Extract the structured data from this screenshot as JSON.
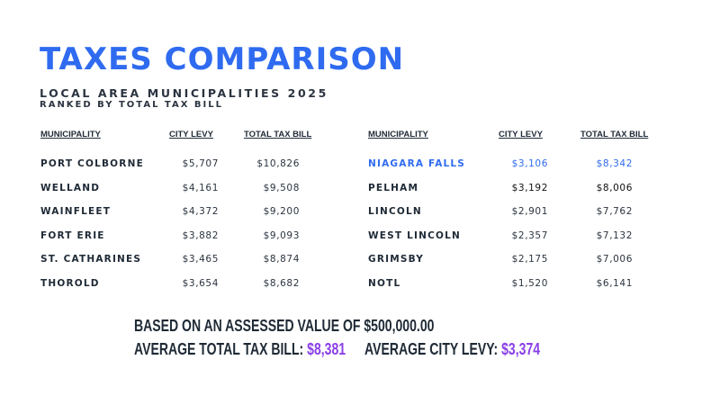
{
  "title": "TAXES COMPARISON",
  "subtitle_line1": "LOCAL AREA MUNICIPALITIES 2025",
  "subtitle_line2": "RANKED BY TOTAL TAX BILL",
  "columns": {
    "municipality": "MUNICIPALITY",
    "city_levy": "CITY LEVY",
    "total_tax_bill": "TOTAL TAX  BILL"
  },
  "left_table": [
    {
      "municipality": "PORT COLBORNE",
      "city_levy": "$5,707",
      "total_tax_bill": "$10,826"
    },
    {
      "municipality": "WELLAND",
      "city_levy": "$4,161",
      "total_tax_bill": "$9,508"
    },
    {
      "municipality": "WAINFLEET",
      "city_levy": "$4,372",
      "total_tax_bill": "$9,200"
    },
    {
      "municipality": "FORT ERIE",
      "city_levy": "$3,882",
      "total_tax_bill": "$9,093"
    },
    {
      "municipality": "ST. CATHARINES",
      "city_levy": "$3,465",
      "total_tax_bill": "$8,874"
    },
    {
      "municipality": "THOROLD",
      "city_levy": "$3,654",
      "total_tax_bill": "$8,682"
    }
  ],
  "right_table": [
    {
      "municipality": "NIAGARA FALLS",
      "city_levy": "$3,106",
      "total_tax_bill": "$8,342",
      "highlighted": true
    },
    {
      "municipality": "PELHAM",
      "city_levy": "$3,192",
      "total_tax_bill": "$8,006"
    },
    {
      "municipality": "LINCOLN",
      "city_levy": "$2,901",
      "total_tax_bill": "$7,762"
    },
    {
      "municipality": "WEST LINCOLN",
      "city_levy": "$2,357",
      "total_tax_bill": "$7,132"
    },
    {
      "municipality": "GRIMSBY",
      "city_levy": "$2,175",
      "total_tax_bill": "$7,006"
    },
    {
      "municipality": "NOTL",
      "city_levy": "$1,520",
      "total_tax_bill": "$6,141"
    }
  ],
  "footer": {
    "assessed_note": "BASED ON AN ASSESSED VALUE OF $500,000.00",
    "avg_total_label": "AVERAGE TOTAL TAX BILL: ",
    "avg_total_value": "$8,381",
    "avg_levy_label": "AVERAGE CITY LEVY: ",
    "avg_levy_value": "$3,374"
  },
  "colors": {
    "title": "#2f6bf0",
    "highlight": "#2f6bf0",
    "average_values": "#8a3fe6",
    "text": "#1f2a36"
  }
}
